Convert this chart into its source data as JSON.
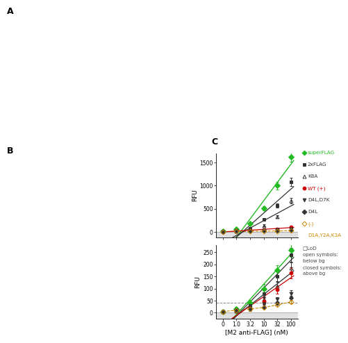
{
  "xlabel": "[M2 anti-FLAG] (nM)",
  "ylabel": "RFU",
  "x_tick_labels": [
    "0",
    "1.0",
    "3.2",
    "10",
    "32",
    "100"
  ],
  "top": {
    "ylim": [
      -120,
      1700
    ],
    "yticks": [
      0,
      500,
      1000,
      1500
    ],
    "series": [
      {
        "label": "superFLAG",
        "color": "#22bb22",
        "marker": "D",
        "ms": 4.0,
        "lw": 1.0,
        "filled": true,
        "x": [
          0,
          1,
          2,
          3,
          4,
          5
        ],
        "y": [
          15,
          55,
          180,
          510,
          1000,
          1620
        ],
        "yerr": [
          12,
          18,
          28,
          50,
          80,
          100
        ],
        "fit": true
      },
      {
        "label": "2xFLAG",
        "color": "#333333",
        "marker": "s",
        "ms": 3.5,
        "lw": 0.9,
        "filled": true,
        "x": [
          0,
          1,
          2,
          3,
          4,
          5
        ],
        "y": [
          8,
          25,
          80,
          270,
          570,
          1080
        ],
        "yerr": [
          8,
          12,
          18,
          28,
          50,
          90
        ],
        "fit": true
      },
      {
        "label": "K8A",
        "color": "#333333",
        "marker": "^",
        "ms": 3.5,
        "lw": 0.9,
        "filled": false,
        "x": [
          0,
          1,
          2,
          3,
          4,
          5
        ],
        "y": [
          6,
          15,
          48,
          140,
          330,
          670
        ],
        "yerr": [
          7,
          10,
          14,
          18,
          32,
          60
        ],
        "fit": true
      },
      {
        "label": "WT (+)",
        "color": "#cc0000",
        "marker": "o",
        "ms": 3.5,
        "lw": 0.9,
        "filled": true,
        "x": [
          0,
          1,
          2,
          3,
          4,
          5
        ],
        "y": [
          5,
          22,
          32,
          48,
          65,
          100
        ],
        "yerr": [
          7,
          9,
          8,
          8,
          8,
          12
        ],
        "fit": true
      },
      {
        "label": "D4L,D7K",
        "color": "#333333",
        "marker": "v",
        "ms": 3.5,
        "lw": 0.9,
        "filled": true,
        "x": [
          0,
          1,
          2,
          3,
          4,
          5
        ],
        "y": [
          4,
          10,
          18,
          28,
          40,
          55
        ],
        "yerr": [
          5,
          7,
          7,
          7,
          7,
          9
        ],
        "fit": false
      },
      {
        "label": "D4L",
        "color": "#333333",
        "marker": "D",
        "ms": 3.0,
        "lw": 0.8,
        "filled": true,
        "x": [
          0,
          1,
          2,
          3,
          4,
          5
        ],
        "y": [
          3,
          8,
          14,
          22,
          32,
          45
        ],
        "yerr": [
          4,
          5,
          6,
          6,
          6,
          7
        ],
        "fit": false
      },
      {
        "label": "(-)\nD1A,Y2A,K3A",
        "color": "#cc8800",
        "marker": "D",
        "ms": 3.5,
        "lw": 0.8,
        "filled": false,
        "x": [
          0,
          1,
          2,
          3,
          4,
          5
        ],
        "y": [
          4,
          8,
          12,
          16,
          20,
          28
        ],
        "yerr": [
          4,
          5,
          5,
          5,
          5,
          6
        ],
        "fit": false,
        "dashed": true
      }
    ]
  },
  "bottom": {
    "ylim": [
      -25,
      280
    ],
    "yticks": [
      0,
      50,
      100,
      150,
      200,
      250
    ],
    "lod": 40,
    "series": [
      {
        "label": "superFLAG",
        "color": "#22bb22",
        "marker": "D",
        "ms": 4.0,
        "lw": 1.0,
        "filled": true,
        "x": [
          0,
          1,
          2,
          3,
          4,
          5
        ],
        "y": [
          5,
          15,
          40,
          100,
          175,
          260
        ],
        "yerr": [
          5,
          8,
          12,
          18,
          22,
          30
        ],
        "fit": true
      },
      {
        "label": "2xFLAG",
        "color": "#333333",
        "marker": "s",
        "ms": 3.5,
        "lw": 0.9,
        "filled": true,
        "x": [
          0,
          1,
          2,
          3,
          4,
          5
        ],
        "y": [
          5,
          12,
          30,
          80,
          150,
          240
        ],
        "yerr": [
          5,
          7,
          10,
          15,
          20,
          28
        ],
        "fit": true
      },
      {
        "label": "K8A",
        "color": "#333333",
        "marker": "^",
        "ms": 3.5,
        "lw": 0.9,
        "filled": false,
        "x": [
          0,
          1,
          2,
          3,
          4,
          5
        ],
        "y": [
          4,
          8,
          20,
          55,
          110,
          185
        ],
        "yerr": [
          4,
          6,
          8,
          12,
          18,
          24
        ],
        "fit": true
      },
      {
        "label": "WT (+)",
        "color": "#cc0000",
        "marker": "o",
        "ms": 3.5,
        "lw": 0.9,
        "filled": true,
        "x": [
          0,
          1,
          2,
          3,
          4,
          5
        ],
        "y": [
          4,
          8,
          18,
          48,
          95,
          165
        ],
        "yerr": [
          4,
          6,
          8,
          12,
          16,
          22
        ],
        "fit": true
      },
      {
        "label": "D4L,D7K",
        "color": "#333333",
        "marker": "v",
        "ms": 3.5,
        "lw": 0.9,
        "filled": true,
        "x": [
          0,
          1,
          2,
          3,
          4,
          5
        ],
        "y": [
          5,
          10,
          18,
          35,
          55,
          80
        ],
        "yerr": [
          4,
          6,
          7,
          8,
          10,
          12
        ],
        "fit": false
      },
      {
        "label": "D4L",
        "color": "#333333",
        "marker": "D",
        "ms": 3.0,
        "lw": 0.8,
        "filled": true,
        "x": [
          0,
          1,
          2,
          3,
          4,
          5
        ],
        "y": [
          4,
          8,
          14,
          25,
          40,
          60
        ],
        "yerr": [
          4,
          5,
          6,
          7,
          8,
          10
        ],
        "fit": false
      },
      {
        "label": "(-)\nD1A,Y2A,K3A",
        "color": "#cc8800",
        "marker": "D",
        "ms": 3.5,
        "lw": 0.8,
        "filled": false,
        "x": [
          0,
          1,
          2,
          3,
          4,
          5
        ],
        "y": [
          5,
          10,
          15,
          22,
          32,
          45
        ],
        "yerr": [
          4,
          5,
          5,
          6,
          6,
          8
        ],
        "fit": false,
        "dashed": true
      }
    ]
  },
  "legend_items": [
    {
      "label": "superFLAG",
      "color": "#22bb22",
      "marker": "D",
      "filled": true
    },
    {
      "label": "2xFLAG",
      "color": "#333333",
      "marker": "s",
      "filled": true
    },
    {
      "label": "K8A",
      "color": "#333333",
      "marker": "^",
      "filled": false
    },
    {
      "label": "WT (+)",
      "color": "#cc0000",
      "marker": "o",
      "filled": true
    },
    {
      "label": "D4L,D7K",
      "color": "#333333",
      "marker": "v",
      "filled": true
    },
    {
      "label": "D4L",
      "color": "#333333",
      "marker": "D",
      "filled": true
    },
    {
      "label": "(-)",
      "color": "#cc8800",
      "marker": "D",
      "filled": false
    },
    {
      "label": "D1A,Y2A,K3A",
      "color": "#cc8800",
      "marker": "",
      "filled": false
    }
  ],
  "panel_label": "C",
  "fig_width": 4.74,
  "fig_height": 5.02,
  "bg_color": "#ffffff"
}
